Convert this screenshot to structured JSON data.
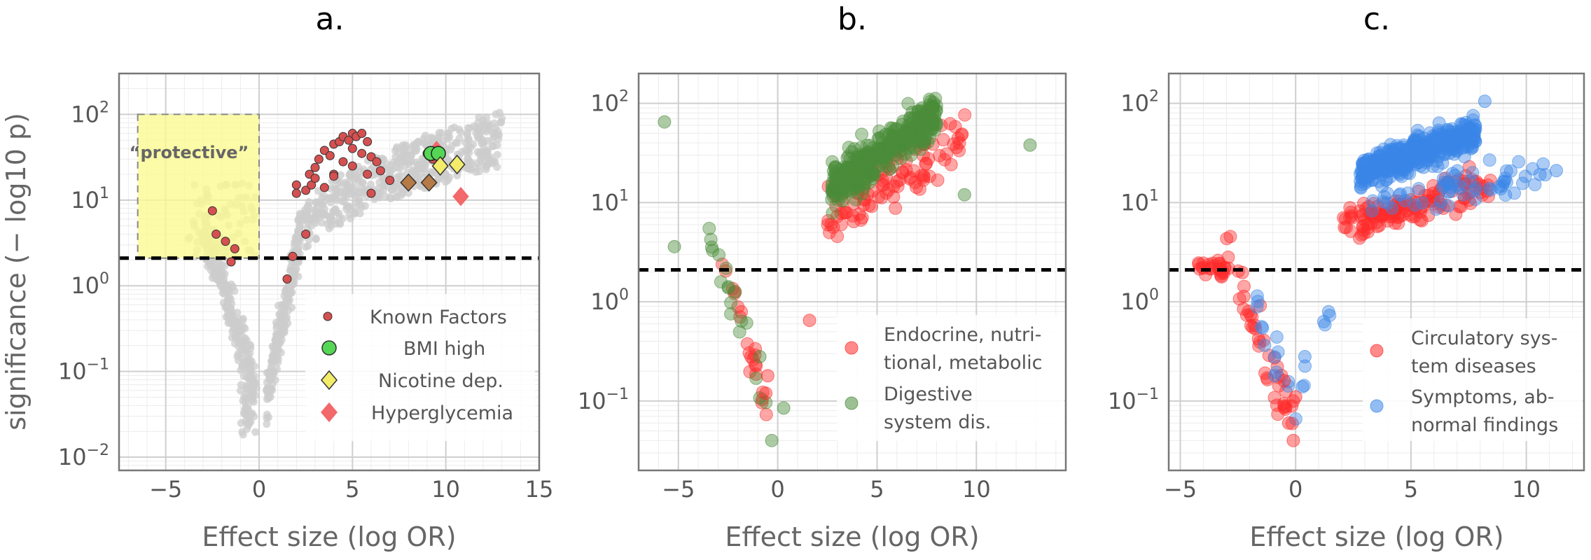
{
  "panels": [
    {
      "letter": "a.",
      "xlabel": "Effect size (log OR)",
      "ylabel": "significance (− log10 p)"
    },
    {
      "letter": "b.",
      "xlabel": "Effect size (log OR)",
      "ylabel": ""
    },
    {
      "letter": "c.",
      "xlabel": "Effect size (log OR)",
      "ylabel": ""
    }
  ],
  "annotation": {
    "protective_label": "“protective”"
  },
  "legends": {
    "a": [
      "Known Factors",
      "BMI high",
      "Nicotine dep.",
      "Hyperglycemia"
    ],
    "b": [
      [
        "Endocrine, nutri-",
        "tional, metabolic"
      ],
      [
        "Digestive",
        "system dis."
      ]
    ],
    "c": [
      [
        "Circulatory sys-",
        "tem diseases"
      ],
      [
        "Symptoms, ab-",
        "normal findings"
      ]
    ]
  },
  "colors": {
    "background": "#cccccc",
    "known": "#d55050",
    "bmi": "#55d655",
    "nicotine": "#f2ec6a",
    "hyperglycemia": "#f2686b",
    "protective_box": "#fbfb90",
    "endocrine": "#ff2a2a",
    "digestive": "#4a8c3a",
    "circulatory": "#ff2a2a",
    "symptoms": "#3a86e8",
    "threshold": "#000000"
  },
  "chart_data": [
    {
      "type": "scatter",
      "title": "a.",
      "xlabel": "Effect size (log OR)",
      "ylabel": "significance (−log10 p)",
      "xlim": [
        -7.5,
        15
      ],
      "ylim": [
        0.007,
        300
      ],
      "y_scale": "log",
      "xticks": [
        -5,
        0,
        5,
        10,
        15
      ],
      "yticks": [
        "10^-2",
        "10^-1",
        "10^0",
        "10^1",
        "10^2"
      ],
      "threshold_y": 2.1,
      "protective_region": {
        "x": [
          -6.5,
          0
        ],
        "y": [
          2.1,
          100
        ],
        "label": "“protective”"
      },
      "series": [
        {
          "name": "Known Factors",
          "marker": "circle",
          "points": [
            [
              -2.5,
              7.5
            ],
            [
              -2.3,
              4
            ],
            [
              -1.8,
              3.3
            ],
            [
              -1.3,
              2.7
            ],
            [
              -1.5,
              1.9
            ],
            [
              1.5,
              1.2
            ],
            [
              1.8,
              2.2
            ],
            [
              2.5,
              4
            ],
            [
              2,
              12
            ],
            [
              2,
              15
            ],
            [
              2.5,
              13
            ],
            [
              2.8,
              15
            ],
            [
              2.7,
              20
            ],
            [
              3,
              24
            ],
            [
              3.2,
              30
            ],
            [
              3.5,
              38
            ],
            [
              3.5,
              14
            ],
            [
              3.8,
              33
            ],
            [
              4,
              45
            ],
            [
              4,
              20
            ],
            [
              4.3,
              48
            ],
            [
              4.5,
              55
            ],
            [
              4.5,
              28
            ],
            [
              4.8,
              50
            ],
            [
              5,
              60
            ],
            [
              5,
              40
            ],
            [
              5,
              25
            ],
            [
              5.2,
              55
            ],
            [
              5.5,
              60
            ],
            [
              5.5,
              35
            ],
            [
              5.8,
              48
            ],
            [
              6,
              32
            ],
            [
              6.3,
              28
            ],
            [
              6.5,
              22
            ],
            [
              7,
              17
            ],
            [
              5.8,
              20
            ],
            [
              4,
              19
            ],
            [
              3,
              18
            ],
            [
              6,
              12
            ],
            [
              9,
              35
            ],
            [
              9.3,
              30
            ]
          ]
        },
        {
          "name": "BMI high",
          "marker": "circle",
          "points": [
            [
              9.2,
              35
            ],
            [
              9.6,
              35
            ]
          ]
        },
        {
          "name": "Nicotine dep.",
          "marker": "diamond",
          "points": [
            [
              9.7,
              25
            ],
            [
              10.6,
              26
            ]
          ]
        },
        {
          "name": "Hyperglycemia",
          "marker": "diamond",
          "points": [
            [
              9.5,
              38
            ],
            [
              10.8,
              11
            ]
          ]
        },
        {
          "name": "",
          "marker": "circle",
          "points": [
            [
              8,
              16
            ],
            [
              9.1,
              16
            ]
          ]
        }
      ]
    },
    {
      "type": "scatter",
      "title": "b.",
      "xlabel": "Effect size (log OR)",
      "ylim": [
        0.02,
        200
      ],
      "xlim": [
        -7,
        14.5
      ],
      "y_scale": "log",
      "xticks": [
        -5,
        0,
        5,
        10
      ],
      "yticks": [
        "10^-1",
        "10^0",
        "10^1",
        "10^2"
      ],
      "threshold_y": 2.1,
      "series": [
        {
          "name": "Endocrine, nutritional, metabolic",
          "color": "#ff2a2a"
        },
        {
          "name": "Digestive system dis.",
          "color": "#4a8c3a"
        }
      ]
    },
    {
      "type": "scatter",
      "title": "c.",
      "xlabel": "Effect size (log OR)",
      "ylim": [
        0.02,
        200
      ],
      "xlim": [
        -5.5,
        12.5
      ],
      "y_scale": "log",
      "xticks": [
        -5,
        0,
        5,
        10
      ],
      "yticks": [
        "10^-1",
        "10^0",
        "10^1",
        "10^2"
      ],
      "threshold_y": 2.1,
      "series": [
        {
          "name": "Circulatory system diseases",
          "color": "#ff2a2a"
        },
        {
          "name": "Symptoms, abnormal findings",
          "color": "#3a86e8"
        }
      ]
    }
  ]
}
